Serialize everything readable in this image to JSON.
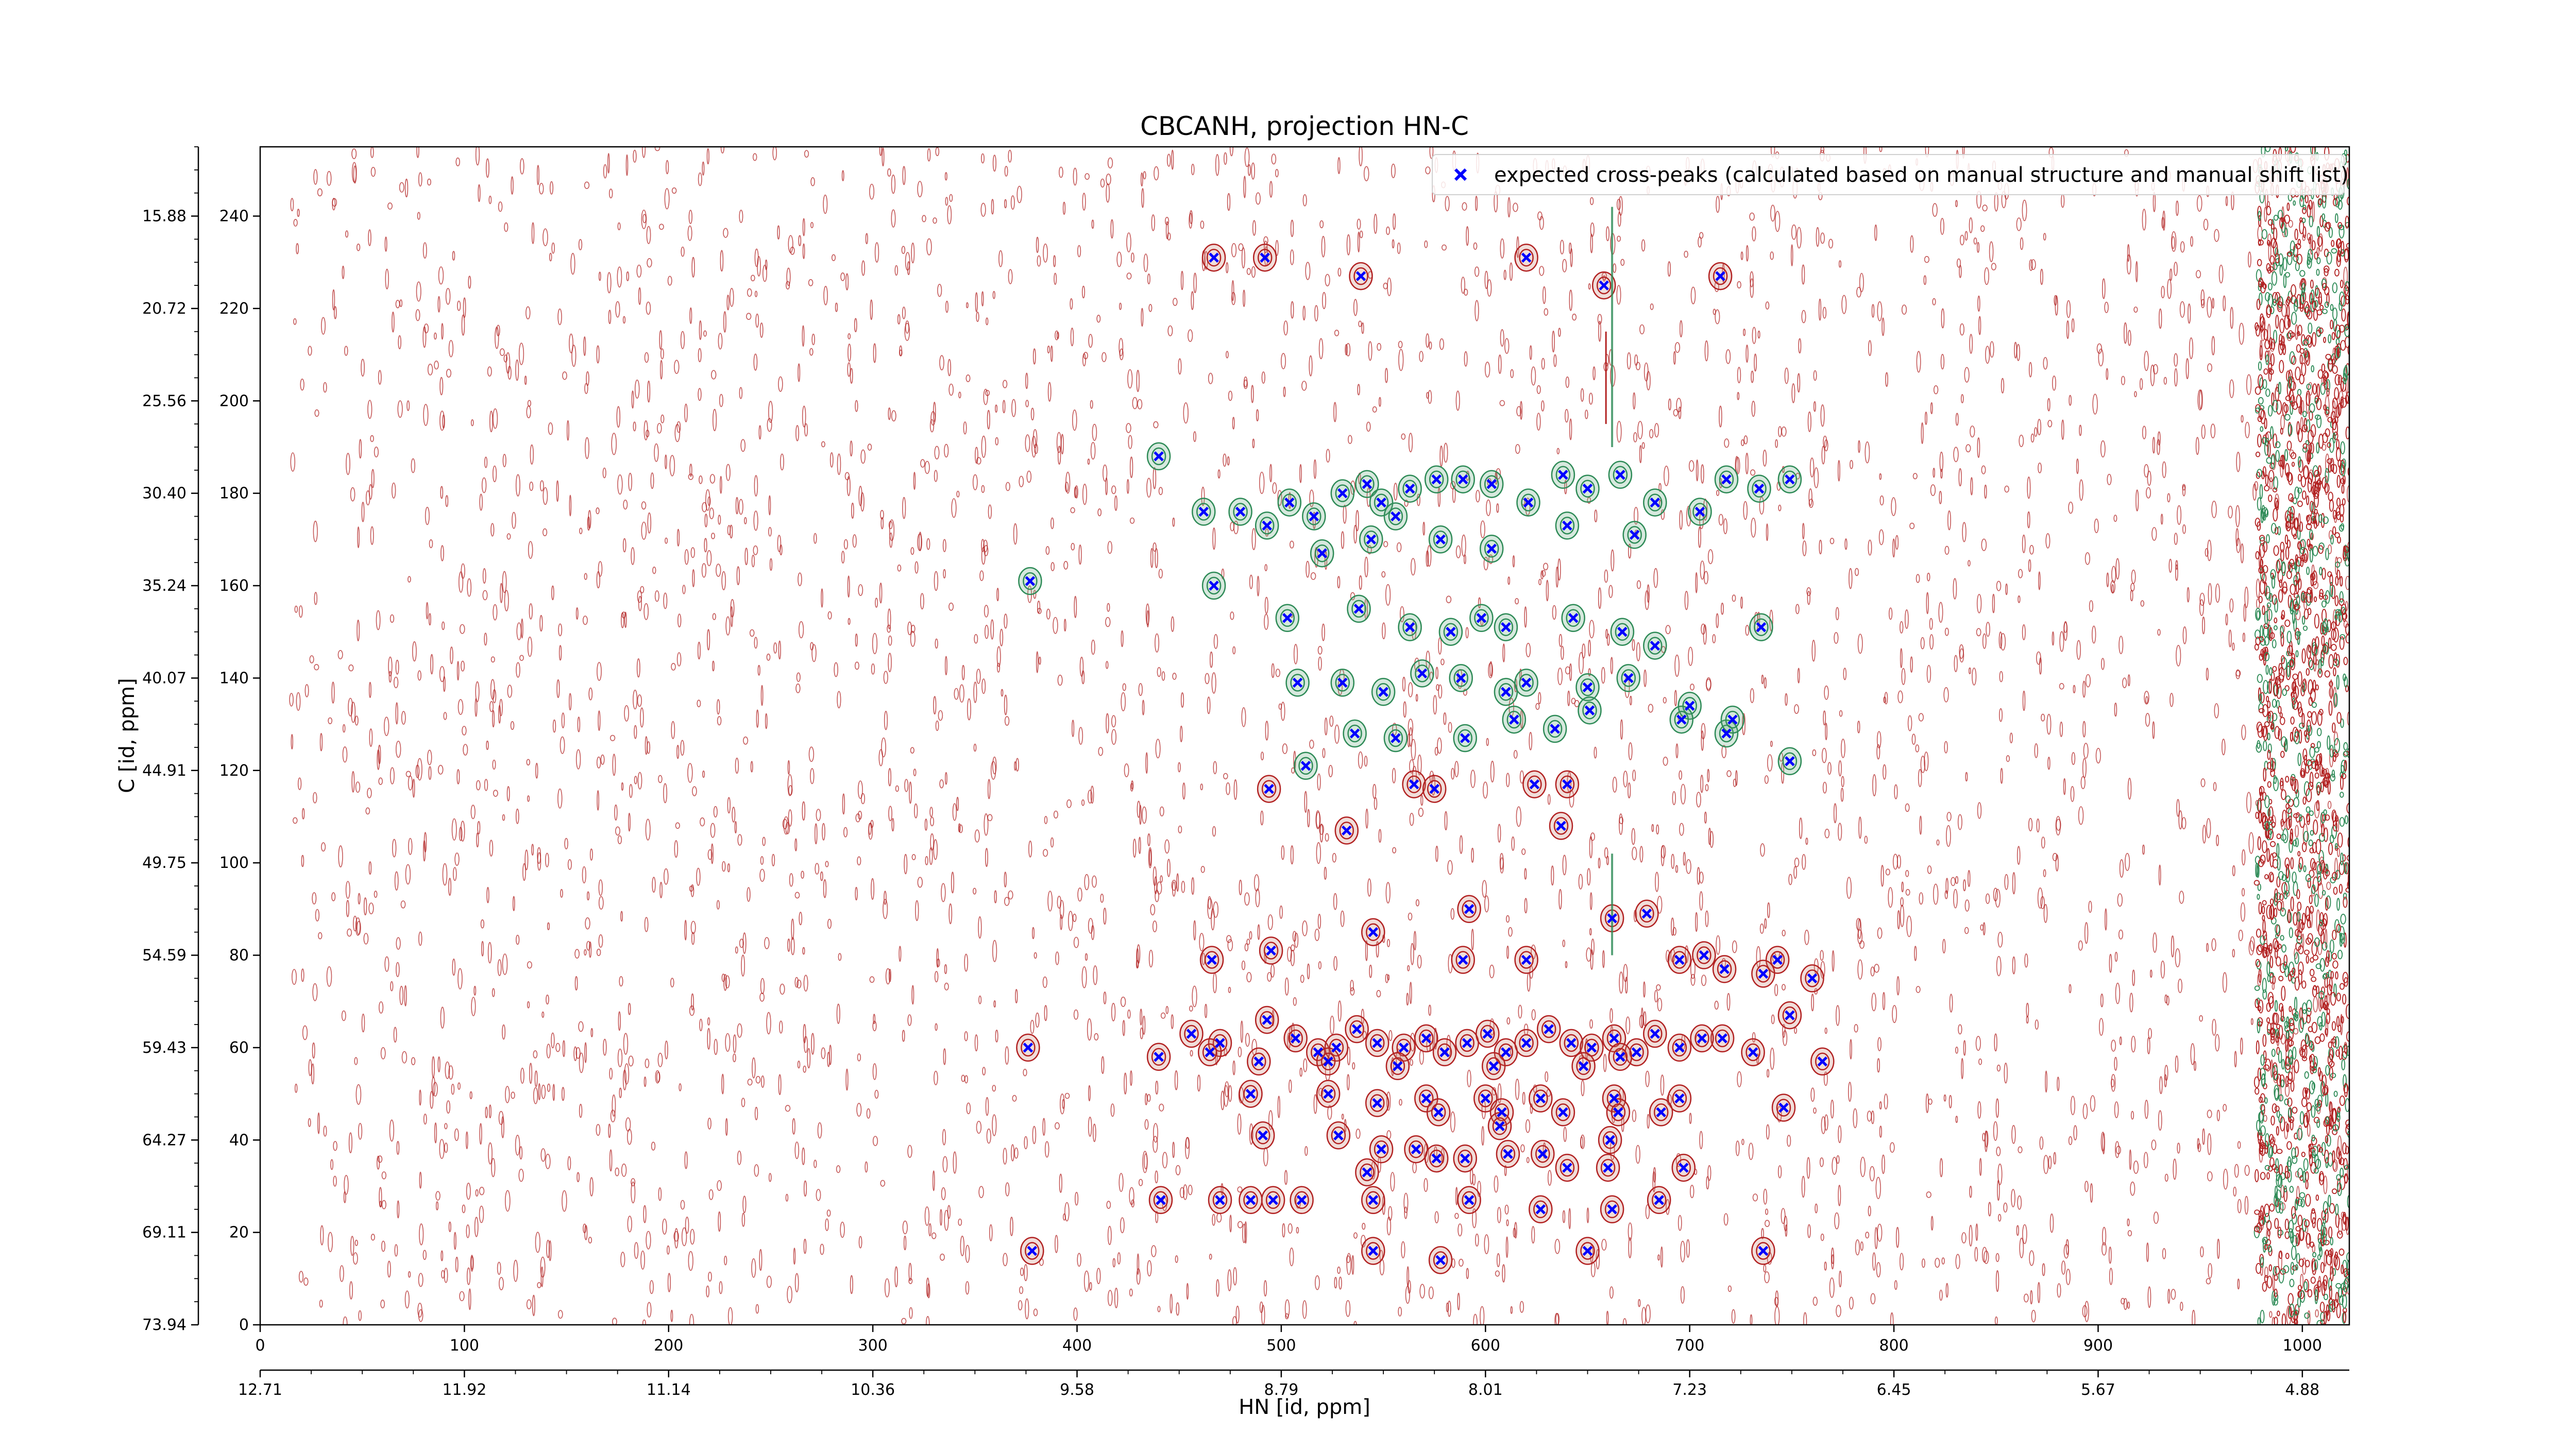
{
  "chart_data": {
    "type": "scatter",
    "title": "CBCANH, projection HN-C",
    "xlabel": "HN [id, ppm]",
    "ylabel": "C [id, ppm]",
    "xlim": [
      0,
      1023
    ],
    "ylim": [
      0,
      255
    ],
    "grid": false,
    "legend_position": "top-right",
    "x_ticks": [
      "0",
      "100",
      "200",
      "300",
      "400",
      "500",
      "600",
      "700",
      "800",
      "900",
      "1000"
    ],
    "x_tick_values": [
      0,
      100,
      200,
      300,
      400,
      500,
      600,
      700,
      800,
      900,
      1000
    ],
    "y_ticks": [
      "0",
      "20",
      "40",
      "60",
      "80",
      "100",
      "120",
      "140",
      "160",
      "180",
      "200",
      "220",
      "240"
    ],
    "y_tick_values": [
      0,
      20,
      40,
      60,
      80,
      100,
      120,
      140,
      160,
      180,
      200,
      220,
      240
    ],
    "x_secondary_ticks": [
      "12.71",
      "11.92",
      "11.14",
      "10.36",
      "9.58",
      "8.79",
      "8.01",
      "7.23",
      "6.45",
      "5.67",
      "4.88"
    ],
    "x_secondary_tick_values": [
      0,
      100,
      200,
      300,
      400,
      500,
      600,
      700,
      800,
      900,
      1000
    ],
    "y_secondary_ticks": [
      "73.94",
      "69.11",
      "64.27",
      "59.43",
      "54.59",
      "49.75",
      "44.91",
      "40.07",
      "35.24",
      "30.40",
      "25.56",
      "20.72",
      "15.88"
    ],
    "y_secondary_tick_values": [
      0,
      20,
      40,
      60,
      80,
      100,
      120,
      140,
      160,
      180,
      200,
      220,
      240
    ],
    "colors": {
      "expected_peaks": "#0000ff",
      "positive_contours": "#2e8b57",
      "negative_contours": "#b22222"
    },
    "series": [
      {
        "name": "expected cross-peaks (calculated based on manual structure and manual shift list)",
        "marker": "x",
        "points": [
          [
            467,
            231
          ],
          [
            492,
            231
          ],
          [
            539,
            227
          ],
          [
            620,
            231
          ],
          [
            658,
            225
          ],
          [
            715,
            227
          ],
          [
            440,
            188
          ],
          [
            462,
            176
          ],
          [
            480,
            176
          ],
          [
            493,
            173
          ],
          [
            504,
            178
          ],
          [
            516,
            175
          ],
          [
            520,
            167
          ],
          [
            530,
            180
          ],
          [
            542,
            182
          ],
          [
            549,
            178
          ],
          [
            556,
            175
          ],
          [
            563,
            181
          ],
          [
            576,
            183
          ],
          [
            589,
            183
          ],
          [
            603,
            182
          ],
          [
            621,
            178
          ],
          [
            638,
            184
          ],
          [
            650,
            181
          ],
          [
            666,
            184
          ],
          [
            683,
            178
          ],
          [
            705,
            176
          ],
          [
            718,
            183
          ],
          [
            734,
            181
          ],
          [
            749,
            183
          ],
          [
            544,
            170
          ],
          [
            578,
            170
          ],
          [
            603,
            168
          ],
          [
            640,
            173
          ],
          [
            673,
            171
          ],
          [
            377,
            161
          ],
          [
            467,
            160
          ],
          [
            503,
            153
          ],
          [
            538,
            155
          ],
          [
            563,
            151
          ],
          [
            583,
            150
          ],
          [
            598,
            153
          ],
          [
            610,
            151
          ],
          [
            643,
            153
          ],
          [
            667,
            150
          ],
          [
            683,
            147
          ],
          [
            735,
            151
          ],
          [
            508,
            139
          ],
          [
            530,
            139
          ],
          [
            550,
            137
          ],
          [
            569,
            141
          ],
          [
            588,
            140
          ],
          [
            610,
            137
          ],
          [
            620,
            139
          ],
          [
            650,
            138
          ],
          [
            670,
            140
          ],
          [
            700,
            134
          ],
          [
            718,
            128
          ],
          [
            536,
            128
          ],
          [
            556,
            127
          ],
          [
            590,
            127
          ],
          [
            614,
            131
          ],
          [
            634,
            129
          ],
          [
            651,
            133
          ],
          [
            696,
            131
          ],
          [
            721,
            131
          ],
          [
            512,
            121
          ],
          [
            749,
            122
          ],
          [
            494,
            116
          ],
          [
            565,
            117
          ],
          [
            575,
            116
          ],
          [
            624,
            117
          ],
          [
            640,
            117
          ],
          [
            532,
            107
          ],
          [
            637,
            108
          ],
          [
            592,
            90
          ],
          [
            662,
            88
          ],
          [
            679,
            89
          ],
          [
            707,
            80
          ],
          [
            495,
            81
          ],
          [
            466,
            79
          ],
          [
            545,
            85
          ],
          [
            589,
            79
          ],
          [
            620,
            79
          ],
          [
            695,
            79
          ],
          [
            743,
            79
          ],
          [
            717,
            77
          ],
          [
            736,
            76
          ],
          [
            760,
            75
          ],
          [
            749,
            67
          ],
          [
            765,
            57
          ],
          [
            731,
            59
          ],
          [
            716,
            62
          ],
          [
            376,
            60
          ],
          [
            440,
            58
          ],
          [
            456,
            63
          ],
          [
            470,
            61
          ],
          [
            493,
            66
          ],
          [
            507,
            62
          ],
          [
            518,
            59
          ],
          [
            527,
            60
          ],
          [
            537,
            64
          ],
          [
            547,
            61
          ],
          [
            560,
            60
          ],
          [
            571,
            62
          ],
          [
            580,
            59
          ],
          [
            591,
            61
          ],
          [
            601,
            63
          ],
          [
            610,
            59
          ],
          [
            620,
            61
          ],
          [
            631,
            64
          ],
          [
            642,
            61
          ],
          [
            652,
            60
          ],
          [
            663,
            62
          ],
          [
            674,
            59
          ],
          [
            683,
            63
          ],
          [
            695,
            60
          ],
          [
            706,
            62
          ],
          [
            465,
            59
          ],
          [
            489,
            57
          ],
          [
            523,
            57
          ],
          [
            557,
            56
          ],
          [
            604,
            56
          ],
          [
            648,
            56
          ],
          [
            666,
            58
          ],
          [
            485,
            50
          ],
          [
            523,
            50
          ],
          [
            547,
            48
          ],
          [
            571,
            49
          ],
          [
            600,
            49
          ],
          [
            627,
            49
          ],
          [
            663,
            49
          ],
          [
            695,
            49
          ],
          [
            577,
            46
          ],
          [
            608,
            46
          ],
          [
            638,
            46
          ],
          [
            665,
            46
          ],
          [
            686,
            46
          ],
          [
            746,
            47
          ],
          [
            491,
            41
          ],
          [
            528,
            41
          ],
          [
            607,
            43
          ],
          [
            661,
            40
          ],
          [
            549,
            38
          ],
          [
            566,
            38
          ],
          [
            576,
            36
          ],
          [
            590,
            36
          ],
          [
            611,
            37
          ],
          [
            628,
            37
          ],
          [
            640,
            34
          ],
          [
            660,
            34
          ],
          [
            697,
            34
          ],
          [
            542,
            33
          ],
          [
            441,
            27
          ],
          [
            470,
            27
          ],
          [
            485,
            27
          ],
          [
            496,
            27
          ],
          [
            510,
            27
          ],
          [
            545,
            27
          ],
          [
            592,
            27
          ],
          [
            627,
            25
          ],
          [
            662,
            25
          ],
          [
            685,
            27
          ],
          [
            378,
            16
          ],
          [
            545,
            16
          ],
          [
            578,
            14
          ],
          [
            650,
            16
          ],
          [
            736,
            16
          ]
        ]
      }
    ]
  }
}
